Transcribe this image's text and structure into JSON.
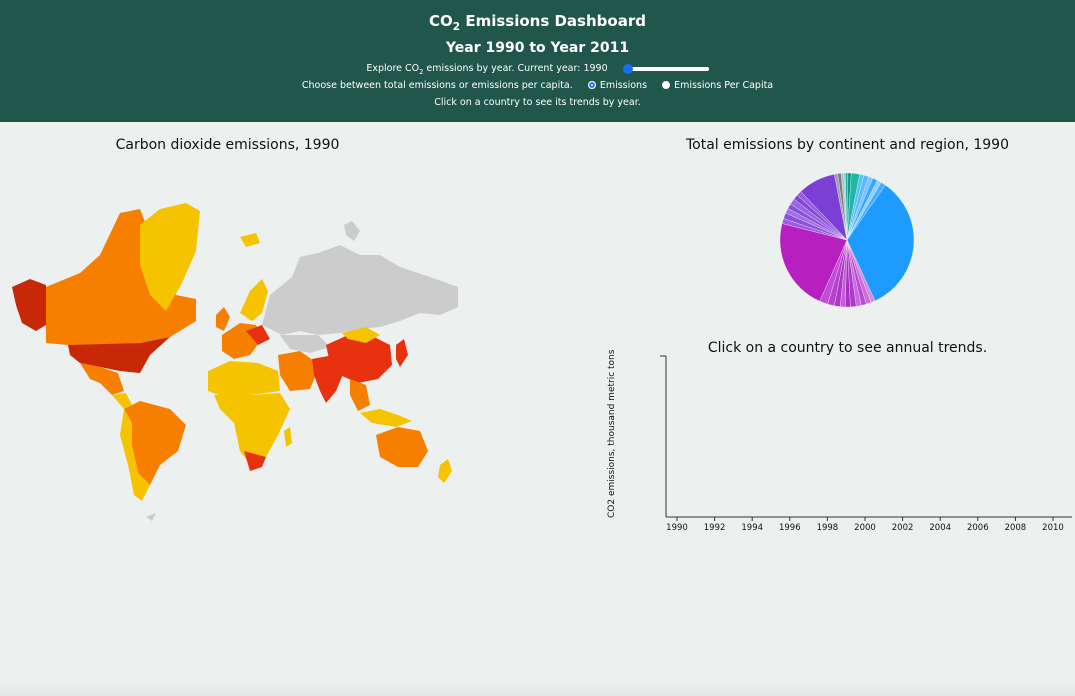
{
  "header": {
    "title_pre": "CO",
    "title_sub": "2",
    "title_post": " Emissions Dashboard",
    "years": "Year 1990 to Year 2011",
    "explore_pre": "Explore CO",
    "explore_sub": "2",
    "explore_post": " emissions by year. Current year: 1990",
    "slider": {
      "min": 1990,
      "max": 2011,
      "value": 1990
    },
    "choose_text": "Choose between total emissions or emissions per capita.",
    "radio_emissions": "Emissions",
    "radio_per_capita": "Emissions Per Capita",
    "selected": "Emissions",
    "click_hint": "Click on a country to see its trends by year."
  },
  "map": {
    "title": "Carbon dioxide emissions, 1990"
  },
  "pie": {
    "title": "Total emissions by continent and region, 1990"
  },
  "trend": {
    "title": "Click on a country to see annual trends.",
    "ylabel": "CO2 emissions, thousand metric tons",
    "x_ticks": [
      "1990",
      "1992",
      "1994",
      "1996",
      "1998",
      "2000",
      "2002",
      "2004",
      "2006",
      "2008",
      "2010"
    ]
  },
  "colors": {
    "header_bg": "#21574a",
    "page_bg": "#ecf1f0",
    "no_data": "#cccccc",
    "low": "#f6c300",
    "mid": "#f77f00",
    "high": "#e8320f",
    "highest": "#c82808",
    "pie_blue": "#1e9bff",
    "pie_purple": "#b81fc0",
    "pie_violet": "#7b3fd6",
    "pie_teal": "#19b3a3"
  }
}
